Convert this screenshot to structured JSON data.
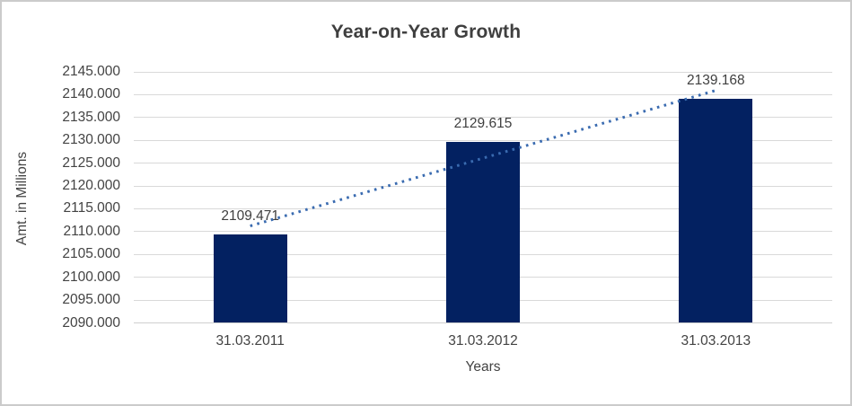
{
  "chart_data": {
    "type": "bar",
    "title": "Year-on-Year Growth",
    "xlabel": "Years",
    "ylabel": "Amt. in Millions",
    "categories": [
      "31.03.2011",
      "31.03.2012",
      "31.03.2013"
    ],
    "values": [
      2109.471,
      2129.615,
      2139.168
    ],
    "data_labels": [
      "2109.471",
      "2129.615",
      "2139.168"
    ],
    "ylim": [
      2090,
      2145
    ],
    "ytick_step": 5,
    "ytick_decimals": 3,
    "grid": true,
    "legend": "none",
    "colors": {
      "bar": "#032161",
      "trendline": "#3a6bb0",
      "gridline": "#d9d9d9",
      "text": "#434343",
      "title_text": "#3f3f3f",
      "border": "#cbcbcb"
    },
    "trendline": {
      "type": "linear",
      "style": "dotted"
    }
  }
}
